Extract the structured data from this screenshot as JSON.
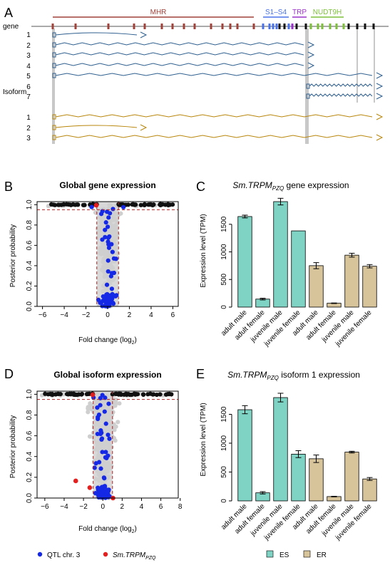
{
  "panel_letters": [
    "A",
    "B",
    "C",
    "D",
    "E"
  ],
  "panel_a": {
    "gene_label": "gene",
    "isoform_axis_label": "Isoform",
    "domains": [
      {
        "label": "MHR",
        "color": "#a0413a"
      },
      {
        "label": "S1–S4",
        "color": "#4a72e8"
      },
      {
        "label": "TRP",
        "color": "#9a30c8"
      },
      {
        "label": "NUDT9H",
        "color": "#7dbf3a"
      }
    ],
    "es_isoforms": [
      "1",
      "2",
      "3",
      "4",
      "5",
      "6",
      "7"
    ],
    "er_isoforms": [
      "1",
      "2",
      "3"
    ],
    "es_color": "#2e5f8f",
    "er_color": "#b8860b"
  },
  "charts": {
    "B": {
      "type": "scatter",
      "title": "Global gene expression",
      "xlabel_main": "Fold change (log",
      "xlabel_sub": "2",
      "xlabel_end": ")",
      "ylabel": "Posterior probability",
      "xlim": [
        -6.5,
        6.5
      ],
      "ylim": [
        0,
        1.03
      ],
      "xticks": [
        "-6",
        "-4",
        "-2",
        "0",
        "2",
        "4",
        "6"
      ],
      "yticks": [
        "0.0",
        "0.2",
        "0.4",
        "0.6",
        "0.8",
        "1.0"
      ],
      "threshold_y": 0.95,
      "fc_lines": [
        -1,
        1
      ]
    },
    "C": {
      "type": "bar",
      "title_main": "Sm.TRPM",
      "title_sub": "PZQ",
      "title_end": " gene expression",
      "ylabel": "Expression level (TPM)",
      "categories": [
        "adult male",
        "adult female",
        "juvenile male",
        "juvenile female",
        "adult male",
        "adult female",
        "juvenile male",
        "juvenile female"
      ],
      "values": [
        1640,
        145,
        1910,
        1380,
        750,
        70,
        940,
        740
      ],
      "errors": [
        25,
        15,
        60,
        0,
        55,
        5,
        35,
        30
      ],
      "groups": [
        "ES",
        "ES",
        "ES",
        "ES",
        "ER",
        "ER",
        "ER",
        "ER"
      ],
      "ylim": [
        0,
        2000
      ],
      "yticks": [
        "0",
        "500",
        "1000",
        "1500"
      ]
    },
    "D": {
      "type": "scatter",
      "title": "Global isoform expression",
      "xlabel_main": "Fold change (log",
      "xlabel_sub": "2",
      "xlabel_end": ")",
      "ylabel": "Posterior probability",
      "xlim": [
        -6.8,
        7.8
      ],
      "ylim": [
        0,
        1.03
      ],
      "xticks": [
        "-6",
        "-4",
        "-2",
        "0",
        "2",
        "4",
        "6",
        "8"
      ],
      "yticks": [
        "0.0",
        "0.2",
        "0.4",
        "0.6",
        "0.8",
        "1.0"
      ],
      "threshold_y": 0.95,
      "fc_lines": [
        -1,
        1
      ]
    },
    "E": {
      "type": "bar",
      "title_main": "Sm.TRPM",
      "title_sub": "PZQ",
      "title_end": " isoform 1 expression",
      "ylabel": "Expression level (TPM)",
      "categories": [
        "adult male",
        "adult female",
        "juvenile male",
        "juvenile female",
        "adult male",
        "adult female",
        "juvenile male",
        "juvenile female"
      ],
      "values": [
        1580,
        140,
        1790,
        810,
        730,
        75,
        845,
        380
      ],
      "errors": [
        70,
        20,
        75,
        60,
        65,
        5,
        15,
        25
      ],
      "groups": [
        "ES",
        "ES",
        "ES",
        "ES",
        "ER",
        "ER",
        "ER",
        "ER"
      ],
      "ylim": [
        0,
        2000
      ],
      "yticks": [
        "0",
        "500",
        "1000",
        "1500"
      ]
    }
  },
  "legend_points": {
    "qtl": "QTL chr. 3",
    "trpm_main": "Sm.TRPM",
    "trpm_sub": "PZQ",
    "qtl_color": "#1428e6",
    "trpm_color": "#e61e1e"
  },
  "legend_bars": {
    "es": "ES",
    "er": "ER",
    "es_color": "#7fd3c4",
    "er_color": "#d8c49a"
  }
}
